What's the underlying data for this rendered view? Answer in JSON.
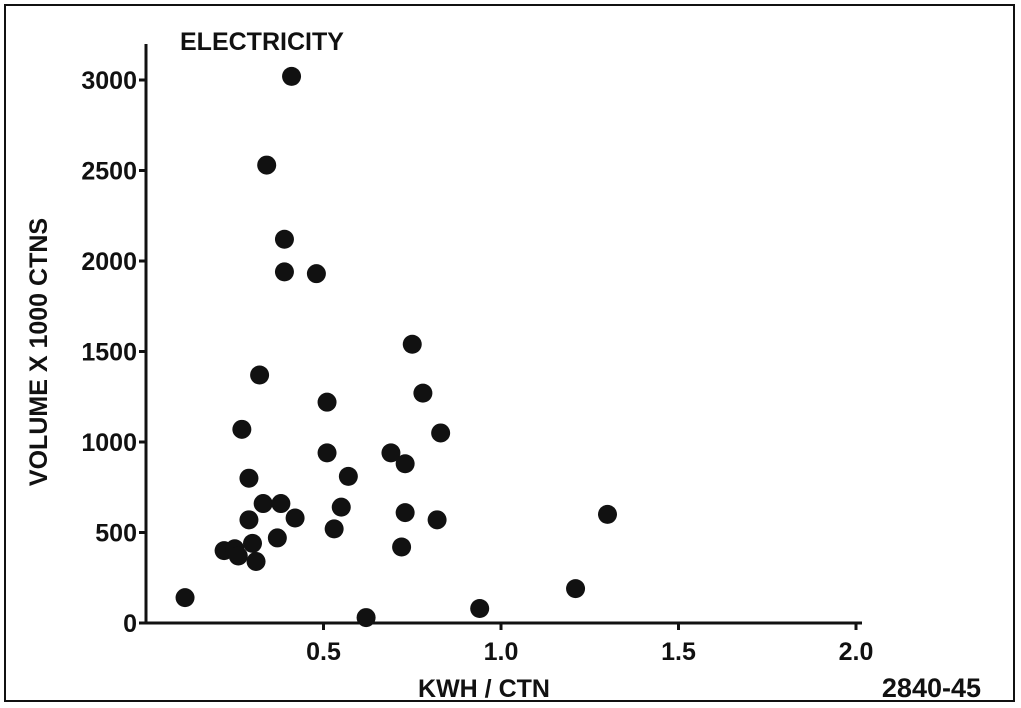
{
  "chart_data": {
    "type": "scatter",
    "title": "ELECTRICITY",
    "xlabel": "KWH / CTN",
    "ylabel": "VOLUME  X  1000  CTNS",
    "xlim": [
      0,
      2.0
    ],
    "ylim": [
      0,
      3000
    ],
    "x_ticks": [
      {
        "value": 0.5,
        "label": "0.5"
      },
      {
        "value": 1.0,
        "label": "1.0"
      },
      {
        "value": 1.5,
        "label": "1.5"
      },
      {
        "value": 2.0,
        "label": "2.0"
      }
    ],
    "y_ticks": [
      {
        "value": 0,
        "label": "0"
      },
      {
        "value": 500,
        "label": "500"
      },
      {
        "value": 1000,
        "label": "1000"
      },
      {
        "value": 1500,
        "label": "1500"
      },
      {
        "value": 2000,
        "label": "2000"
      },
      {
        "value": 2500,
        "label": "2500"
      },
      {
        "value": 3000,
        "label": "3000"
      }
    ],
    "grid": false,
    "marker_color": "#111111",
    "points": [
      {
        "x": 0.41,
        "y": 3020
      },
      {
        "x": 0.34,
        "y": 2530
      },
      {
        "x": 0.39,
        "y": 2120
      },
      {
        "x": 0.39,
        "y": 1940
      },
      {
        "x": 0.48,
        "y": 1930
      },
      {
        "x": 0.75,
        "y": 1540
      },
      {
        "x": 0.32,
        "y": 1370
      },
      {
        "x": 0.78,
        "y": 1270
      },
      {
        "x": 0.51,
        "y": 1220
      },
      {
        "x": 0.27,
        "y": 1070
      },
      {
        "x": 0.83,
        "y": 1050
      },
      {
        "x": 0.51,
        "y": 940
      },
      {
        "x": 0.69,
        "y": 940
      },
      {
        "x": 0.73,
        "y": 880
      },
      {
        "x": 0.57,
        "y": 810
      },
      {
        "x": 0.29,
        "y": 800
      },
      {
        "x": 0.33,
        "y": 660
      },
      {
        "x": 0.38,
        "y": 660
      },
      {
        "x": 0.55,
        "y": 640
      },
      {
        "x": 0.73,
        "y": 610
      },
      {
        "x": 1.3,
        "y": 600
      },
      {
        "x": 0.42,
        "y": 580
      },
      {
        "x": 0.29,
        "y": 570
      },
      {
        "x": 0.82,
        "y": 570
      },
      {
        "x": 0.53,
        "y": 520
      },
      {
        "x": 0.37,
        "y": 470
      },
      {
        "x": 0.3,
        "y": 440
      },
      {
        "x": 0.72,
        "y": 420
      },
      {
        "x": 0.22,
        "y": 400
      },
      {
        "x": 0.25,
        "y": 410
      },
      {
        "x": 0.26,
        "y": 370
      },
      {
        "x": 0.31,
        "y": 340
      },
      {
        "x": 1.21,
        "y": 190
      },
      {
        "x": 0.11,
        "y": 140
      },
      {
        "x": 0.94,
        "y": 80
      },
      {
        "x": 0.62,
        "y": 30
      }
    ]
  },
  "figure_id": "2840-45"
}
